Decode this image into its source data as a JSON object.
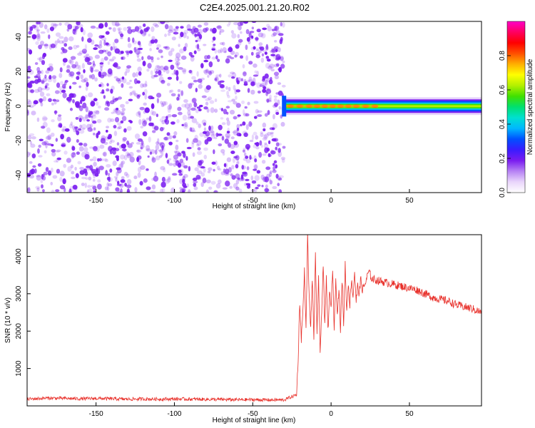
{
  "figure_title": "C2E4.2025.001.21.20.R02",
  "colors": {
    "line": "#e8302a",
    "spectro_noise": "#7a1cf0",
    "colormap": [
      "#ffffff",
      "#e9d5fb",
      "#b682f4",
      "#7a1cf0",
      "#3a1cff",
      "#0050ff",
      "#00b7ff",
      "#00e0d0",
      "#00e070",
      "#40e000",
      "#b4f000",
      "#ffff00",
      "#ffb000",
      "#ff5000",
      "#ff0000",
      "#ff0060",
      "#ff00c8"
    ]
  },
  "chart_data": [
    {
      "type": "heatmap",
      "title": "C2E4.2025.001.21.20.R02",
      "xlabel": "Height of straight line (km)",
      "ylabel": "Frequency (Hz)",
      "xlim": [
        -194,
        96
      ],
      "ylim": [
        -50,
        49
      ],
      "x_ticks": [
        "-150",
        "-100",
        "-50",
        "0",
        "50"
      ],
      "x_tick_values": [
        -150,
        -100,
        -50,
        0,
        50
      ],
      "y_ticks": [
        "-40",
        "-20",
        "0",
        "20",
        "40"
      ],
      "y_tick_values": [
        -40,
        -20,
        0,
        20,
        40
      ],
      "description_of_data": {
        "noise_region_km": [
          -194,
          -30
        ],
        "signal_start_km": -30,
        "signal_center_hz": 0,
        "signal_halfwidth_hz": 3,
        "peak_band_end_km": 30
      },
      "colorbar": {
        "label": "Normalized spectral amplitude",
        "range": [
          0.0,
          1.0
        ],
        "ticks": [
          "0.0",
          "0.2",
          "0.4",
          "0.6",
          "0.8"
        ],
        "tick_values": [
          0.0,
          0.2,
          0.4,
          0.6,
          0.8
        ]
      }
    },
    {
      "type": "line",
      "title": "",
      "xlabel": "Height of straight line (km)",
      "ylabel": "SNR (10 * v/v)",
      "xlim": [
        -194,
        96
      ],
      "ylim": [
        0,
        4580
      ],
      "x_ticks": [
        "-150",
        "-100",
        "-50",
        "0",
        "50"
      ],
      "x_tick_values": [
        -150,
        -100,
        -50,
        0,
        50
      ],
      "y_ticks": [
        "1000",
        "2000",
        "3000",
        "4000"
      ],
      "y_tick_values": [
        1000,
        2000,
        3000,
        4000
      ],
      "series": [
        {
          "x": [
            -194,
            -180,
            -170,
            -160,
            -150,
            -140,
            -130,
            -120,
            -110,
            -100,
            -90,
            -80,
            -70,
            -60,
            -50,
            -40,
            -30,
            -22,
            -21,
            -20,
            -19,
            -18,
            -17,
            -16,
            -15,
            -14,
            -13,
            -12,
            -11,
            -10,
            -9,
            -8,
            -7,
            -6,
            -5,
            -4,
            -3,
            -2,
            -1,
            0,
            1,
            2,
            3,
            4,
            5,
            6,
            7,
            8,
            9,
            10,
            11,
            12,
            13,
            14,
            15,
            16,
            17,
            18,
            19,
            20,
            22,
            24,
            26,
            30,
            35,
            40,
            45,
            50,
            55,
            60,
            65,
            70,
            75,
            80,
            85,
            90,
            96
          ],
          "y": [
            180,
            210,
            200,
            190,
            200,
            190,
            180,
            185,
            180,
            185,
            180,
            175,
            170,
            165,
            165,
            160,
            160,
            300,
            1300,
            2800,
            1800,
            2500,
            3600,
            2000,
            4580,
            2900,
            2100,
            3400,
            1800,
            4000,
            1900,
            3500,
            1300,
            2600,
            3800,
            2100,
            3400,
            2000,
            3000,
            2600,
            3700,
            2000,
            3500,
            2400,
            3200,
            2000,
            3400,
            2200,
            3800,
            2500,
            3300,
            2700,
            3400,
            2900,
            3600,
            2800,
            3200,
            3000,
            3400,
            3100,
            3300,
            3600,
            3400,
            3350,
            3300,
            3250,
            3200,
            3150,
            3100,
            3000,
            2900,
            2850,
            2800,
            2700,
            2650,
            2600,
            2500
          ]
        }
      ]
    }
  ]
}
